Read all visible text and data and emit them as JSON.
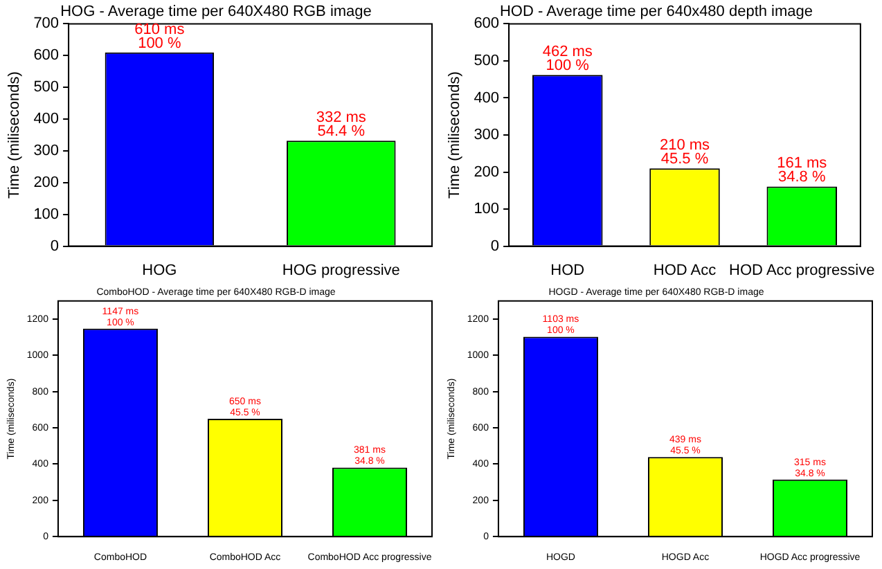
{
  "chart_data": [
    {
      "type": "bar",
      "title": "HOG - Average time per 640X480 RGB image",
      "ylabel": "Time (miliseconds)",
      "categories": [
        "HOG",
        "HOG progressive"
      ],
      "values": [
        610,
        332
      ],
      "colors": [
        "#0000ff",
        "#00ff00"
      ],
      "ylim": [
        0,
        700
      ],
      "yticks": [
        0,
        100,
        200,
        300,
        400,
        500,
        600,
        700
      ],
      "grid": false,
      "legend": false,
      "annotations": [
        {
          "text": "610 ms",
          "x": "HOG",
          "y": 610
        },
        {
          "text": "100 %",
          "x": "HOG",
          "y": 610
        },
        {
          "text": "332 ms",
          "x": "HOG progressive",
          "y": 332
        },
        {
          "text": "54.4 %",
          "x": "HOG progressive",
          "y": 332
        }
      ]
    },
    {
      "type": "bar",
      "title": "HOD - Average time per 640x480 depth image",
      "ylabel": "Time (miliseconds)",
      "categories": [
        "HOD",
        "HOD Acc",
        "HOD Acc progressive"
      ],
      "values": [
        462,
        210,
        161
      ],
      "colors": [
        "#0000ff",
        "#ffff00",
        "#00ff00"
      ],
      "ylim": [
        0,
        600
      ],
      "yticks": [
        0,
        100,
        200,
        300,
        400,
        500,
        600
      ],
      "grid": false,
      "legend": false,
      "annotations": [
        {
          "text": "462 ms",
          "x": "HOD",
          "y": 462
        },
        {
          "text": "100 %",
          "x": "HOD",
          "y": 462
        },
        {
          "text": "210 ms",
          "x": "HOD Acc",
          "y": 210
        },
        {
          "text": "45.5 %",
          "x": "HOD Acc",
          "y": 210
        },
        {
          "text": "161 ms",
          "x": "HOD Acc progressive",
          "y": 161
        },
        {
          "text": "34.8 %",
          "x": "HOD Acc progressive",
          "y": 161
        }
      ]
    },
    {
      "type": "bar",
      "title": "ComboHOD - Average time per 640X480 RGB-D image",
      "ylabel": "Time (miliseconds)",
      "categories": [
        "ComboHOD",
        "ComboHOD Acc",
        "ComboHOD Acc progressive"
      ],
      "values": [
        1147,
        650,
        381
      ],
      "colors": [
        "#0000ff",
        "#ffff00",
        "#00ff00"
      ],
      "ylim": [
        0,
        1300
      ],
      "yticks": [
        0,
        200,
        400,
        600,
        800,
        1000,
        1200
      ],
      "grid": false,
      "legend": false,
      "annotations": [
        {
          "text": "1147 ms",
          "x": "ComboHOD",
          "y": 1147
        },
        {
          "text": "100 %",
          "x": "ComboHOD",
          "y": 1147
        },
        {
          "text": "650 ms",
          "x": "ComboHOD Acc",
          "y": 650
        },
        {
          "text": "45.5 %",
          "x": "ComboHOD Acc",
          "y": 650
        },
        {
          "text": "381 ms",
          "x": "ComboHOD Acc progressive",
          "y": 381
        },
        {
          "text": "34.8 %",
          "x": "ComboHOD Acc progressive",
          "y": 381
        }
      ]
    },
    {
      "type": "bar",
      "title": "HOGD - Average time per 640X480 RGB-D image",
      "ylabel": "Time (miliseconds)",
      "categories": [
        "HOGD",
        "HOGD Acc",
        "HOGD Acc progressive"
      ],
      "values": [
        1103,
        439,
        315
      ],
      "colors": [
        "#0000ff",
        "#ffff00",
        "#00ff00"
      ],
      "ylim": [
        0,
        1300
      ],
      "yticks": [
        0,
        200,
        400,
        600,
        800,
        1000,
        1200
      ],
      "grid": false,
      "legend": false,
      "annotations": [
        {
          "text": "1103 ms",
          "x": "HOGD",
          "y": 1103
        },
        {
          "text": "100 %",
          "x": "HOGD",
          "y": 1103
        },
        {
          "text": "439 ms",
          "x": "HOGD Acc",
          "y": 439
        },
        {
          "text": "45.5 %",
          "x": "HOGD Acc",
          "y": 439
        },
        {
          "text": "315 ms",
          "x": "HOGD Acc progressive",
          "y": 315
        },
        {
          "text": "34.8 %",
          "x": "HOGD Acc progressive",
          "y": 315
        }
      ]
    }
  ]
}
